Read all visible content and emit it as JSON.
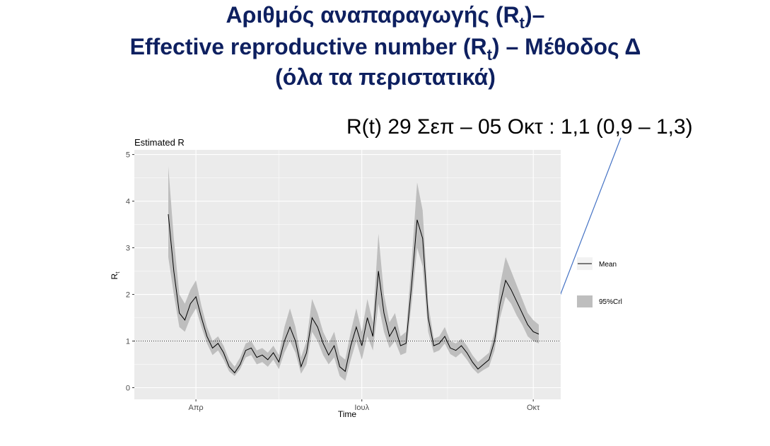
{
  "slide": {
    "title": [
      [
        "Αριθμός αναπαραγωγής (R",
        "t",
        ")–"
      ],
      [
        "Effective reproductive number (R",
        "t",
        ") – Μέθοδος Δ"
      ],
      [
        "(όλα τα περιστατικά)"
      ]
    ],
    "annotation": "R(t) 29 Σεπ – 05 Οκτ : 1,1 (0,9 – 1,3)"
  },
  "chart_data": {
    "type": "line",
    "title": "Estimated R",
    "ylabel": [
      "R",
      "t"
    ],
    "xlabel": "Time",
    "categories": [
      null,
      null,
      null,
      null,
      null,
      "Απρ",
      null,
      null,
      null,
      null,
      null,
      null,
      null,
      null,
      null,
      null,
      null,
      null,
      null,
      null,
      null,
      null,
      null,
      null,
      null,
      null,
      null,
      null,
      null,
      null,
      null,
      null,
      null,
      null,
      null,
      "Ιουλ",
      null,
      null,
      null,
      null,
      null,
      null,
      null,
      null,
      null,
      null,
      null,
      null,
      null,
      null,
      null,
      null,
      null,
      null,
      null,
      null,
      null,
      null,
      null,
      null,
      null,
      null,
      null,
      null,
      null,
      null,
      "Οκτ",
      null
    ],
    "series": [
      {
        "name": "Mean",
        "color": "#000000",
        "values": [
          3.72,
          2.5,
          1.6,
          1.45,
          1.8,
          1.95,
          1.5,
          1.1,
          0.85,
          0.95,
          0.75,
          0.45,
          0.32,
          0.5,
          0.8,
          0.85,
          0.65,
          0.7,
          0.6,
          0.75,
          0.55,
          1.0,
          1.3,
          1.0,
          0.45,
          0.75,
          1.5,
          1.3,
          0.95,
          0.7,
          0.9,
          0.45,
          0.35,
          0.9,
          1.3,
          0.9,
          1.5,
          1.1,
          2.5,
          1.6,
          1.1,
          1.3,
          0.9,
          0.95,
          2.2,
          3.6,
          3.2,
          1.5,
          0.9,
          0.95,
          1.1,
          0.85,
          0.8,
          0.9,
          0.75,
          0.55,
          0.4,
          0.5,
          0.6,
          1.0,
          1.8,
          2.3,
          2.1,
          1.85,
          1.6,
          1.35,
          1.2,
          1.15
        ]
      },
      {
        "name": "95%Crl",
        "color": "#bebebe",
        "lower": [
          2.8,
          2.0,
          1.3,
          1.2,
          1.5,
          1.7,
          1.3,
          0.95,
          0.7,
          0.8,
          0.6,
          0.35,
          0.25,
          0.4,
          0.65,
          0.7,
          0.5,
          0.55,
          0.45,
          0.6,
          0.4,
          0.75,
          1.0,
          0.75,
          0.3,
          0.5,
          1.2,
          1.0,
          0.7,
          0.5,
          0.65,
          0.25,
          0.15,
          0.6,
          1.0,
          0.6,
          1.1,
          0.8,
          1.8,
          1.2,
          0.85,
          1.0,
          0.7,
          0.75,
          1.8,
          3.0,
          2.6,
          1.2,
          0.75,
          0.8,
          0.95,
          0.72,
          0.65,
          0.75,
          0.6,
          0.42,
          0.3,
          0.38,
          0.45,
          0.8,
          1.5,
          1.95,
          1.8,
          1.55,
          1.35,
          1.1,
          1.0,
          0.95
        ],
        "upper": [
          4.75,
          3.2,
          2.0,
          1.8,
          2.1,
          2.3,
          1.75,
          1.3,
          1.0,
          1.1,
          0.9,
          0.6,
          0.45,
          0.65,
          0.95,
          1.0,
          0.8,
          0.85,
          0.75,
          0.9,
          0.7,
          1.3,
          1.7,
          1.3,
          0.65,
          1.0,
          1.9,
          1.6,
          1.2,
          0.95,
          1.2,
          0.7,
          0.6,
          1.2,
          1.7,
          1.2,
          1.9,
          1.4,
          3.3,
          2.0,
          1.4,
          1.6,
          1.1,
          1.2,
          2.7,
          4.4,
          3.8,
          1.8,
          1.05,
          1.1,
          1.3,
          1.0,
          0.95,
          1.05,
          0.9,
          0.7,
          0.55,
          0.65,
          0.75,
          1.2,
          2.2,
          2.8,
          2.5,
          2.2,
          1.9,
          1.6,
          1.45,
          1.35
        ]
      }
    ],
    "hline": 1,
    "ylim": [
      -0.25,
      5.1
    ],
    "yticks": [
      0,
      1,
      2,
      3,
      4,
      5
    ],
    "grid": true,
    "legend": "right"
  }
}
